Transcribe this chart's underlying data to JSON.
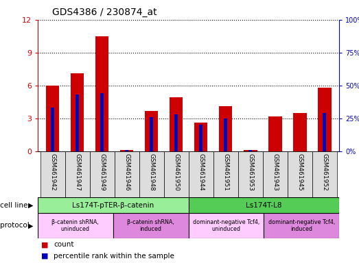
{
  "title": "GDS4386 / 230874_at",
  "samples": [
    "GSM461942",
    "GSM461947",
    "GSM461949",
    "GSM461946",
    "GSM461948",
    "GSM461950",
    "GSM461944",
    "GSM461951",
    "GSM461953",
    "GSM461943",
    "GSM461945",
    "GSM461952"
  ],
  "count_values": [
    6.0,
    7.1,
    10.5,
    0.12,
    3.7,
    4.9,
    2.6,
    4.1,
    0.12,
    3.2,
    3.5,
    5.8
  ],
  "percentile_values": [
    33,
    43,
    44,
    1,
    26,
    28,
    20,
    25,
    1,
    0,
    0,
    29
  ],
  "ylim_left": [
    0,
    12
  ],
  "ylim_right": [
    0,
    100
  ],
  "yticks_left": [
    0,
    3,
    6,
    9,
    12
  ],
  "yticks_right": [
    0,
    25,
    50,
    75,
    100
  ],
  "bar_color": "#CC0000",
  "percentile_color": "#0000BB",
  "cell_line_groups": [
    {
      "label": "Ls174T-pTER-β-catenin",
      "start": 0,
      "end": 6,
      "color": "#99EE99"
    },
    {
      "label": "Ls174T-L8",
      "start": 6,
      "end": 12,
      "color": "#55CC55"
    }
  ],
  "protocol_groups": [
    {
      "label": "β-catenin shRNA,\nuninduced",
      "start": 0,
      "end": 3,
      "color": "#FFCCFF"
    },
    {
      "label": "β-catenin shRNA,\ninduced",
      "start": 3,
      "end": 6,
      "color": "#DD88DD"
    },
    {
      "label": "dominant-negative Tcf4,\nuninduced",
      "start": 6,
      "end": 9,
      "color": "#FFCCFF"
    },
    {
      "label": "dominant-negative Tcf4,\ninduced",
      "start": 9,
      "end": 12,
      "color": "#DD88DD"
    }
  ],
  "background_color": "#ffffff",
  "left_axis_color": "#CC0000",
  "right_axis_color": "#0000BB"
}
